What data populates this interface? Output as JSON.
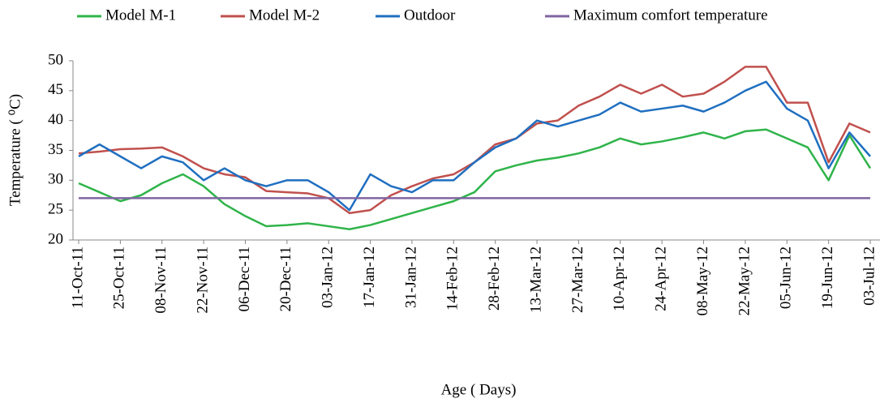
{
  "chart_data": {
    "type": "line",
    "x_label": "Age ( Days)",
    "y_label": "Temperature ( ⁰C)",
    "categories": [
      "11-Oct-11",
      null,
      "25-Oct-11",
      null,
      "08-Nov-11",
      null,
      "22-Nov-11",
      null,
      "06-Dec-11",
      null,
      "20-Dec-11",
      null,
      "03-Jan-12",
      null,
      "17-Jan-12",
      null,
      "31-Jan-12",
      null,
      "14-Feb-12",
      null,
      "28-Feb-12",
      null,
      "13-Mar-12",
      null,
      "27-Mar-12",
      null,
      "10-Apr-12",
      null,
      "24-Apr-12",
      null,
      "08-May-12",
      null,
      "22-May-12",
      null,
      "05-Jun-12",
      null,
      "19-Jun-12",
      null,
      "03-Jul-12"
    ],
    "series": [
      {
        "name": "Model M-1",
        "color": "#2fb44a",
        "values": [
          29.5,
          28,
          26.5,
          27.5,
          29.5,
          31,
          29,
          26,
          24,
          22.3,
          22.5,
          22.8,
          22.3,
          21.8,
          22.5,
          23.5,
          24.5,
          25.5,
          26.5,
          28,
          31.5,
          32.5,
          33.3,
          33.8,
          34.5,
          35.5,
          37,
          36,
          36.5,
          37.2,
          38,
          37,
          38.2,
          38.5,
          37,
          35.5,
          30,
          37.5,
          32
        ]
      },
      {
        "name": "Model M-2",
        "color": "#c0504d",
        "values": [
          34.5,
          34.8,
          35.2,
          35.3,
          35.5,
          34,
          32,
          31,
          30.5,
          28.2,
          28,
          27.8,
          27,
          24.5,
          25,
          27.5,
          29,
          30.3,
          31,
          33,
          36,
          37,
          39.5,
          40,
          42.5,
          44,
          46,
          44.5,
          46,
          44,
          44.5,
          46.5,
          49,
          49,
          43,
          43,
          33,
          39.5,
          38
        ]
      },
      {
        "name": "Outdoor",
        "color": "#1f6fc0",
        "values": [
          34,
          36,
          34,
          32,
          34,
          33,
          30,
          32,
          30,
          29,
          30,
          30,
          28,
          25,
          31,
          29,
          28,
          30,
          30,
          33,
          35.5,
          37,
          40,
          39,
          40,
          41,
          43,
          41.5,
          42,
          42.5,
          41.5,
          43,
          45,
          46.5,
          42,
          40,
          32,
          38,
          34
        ]
      },
      {
        "name": "Maximum comfort temperature",
        "color": "#8064a2",
        "values": [
          27,
          27,
          27,
          27,
          27,
          27,
          27,
          27,
          27,
          27,
          27,
          27,
          27,
          27,
          27,
          27,
          27,
          27,
          27,
          27,
          27,
          27,
          27,
          27,
          27,
          27,
          27,
          27,
          27,
          27,
          27,
          27,
          27,
          27,
          27,
          27,
          27,
          27,
          27
        ]
      }
    ],
    "ylim": [
      20,
      50
    ],
    "yticks": [
      20,
      25,
      30,
      35,
      40,
      45,
      50
    ],
    "grid": false,
    "legend": "top"
  }
}
